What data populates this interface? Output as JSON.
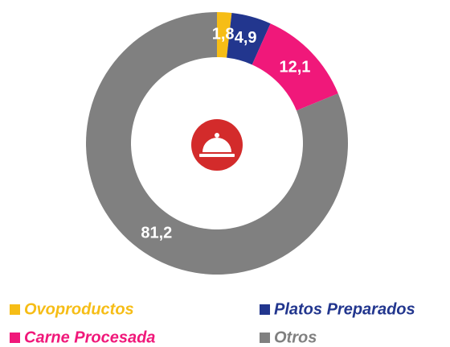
{
  "chart_data": {
    "type": "donut",
    "categories": [
      "Ovoproductos",
      "Platos Preparados",
      "Carne Procesada",
      "Otros"
    ],
    "values": [
      1.8,
      4.9,
      12.1,
      81.2
    ],
    "value_labels": [
      "1,8",
      "4,9",
      "12,1",
      "81,2"
    ],
    "colors": [
      "#f6bd16",
      "#22368e",
      "#f0187a",
      "#808080"
    ]
  }
}
